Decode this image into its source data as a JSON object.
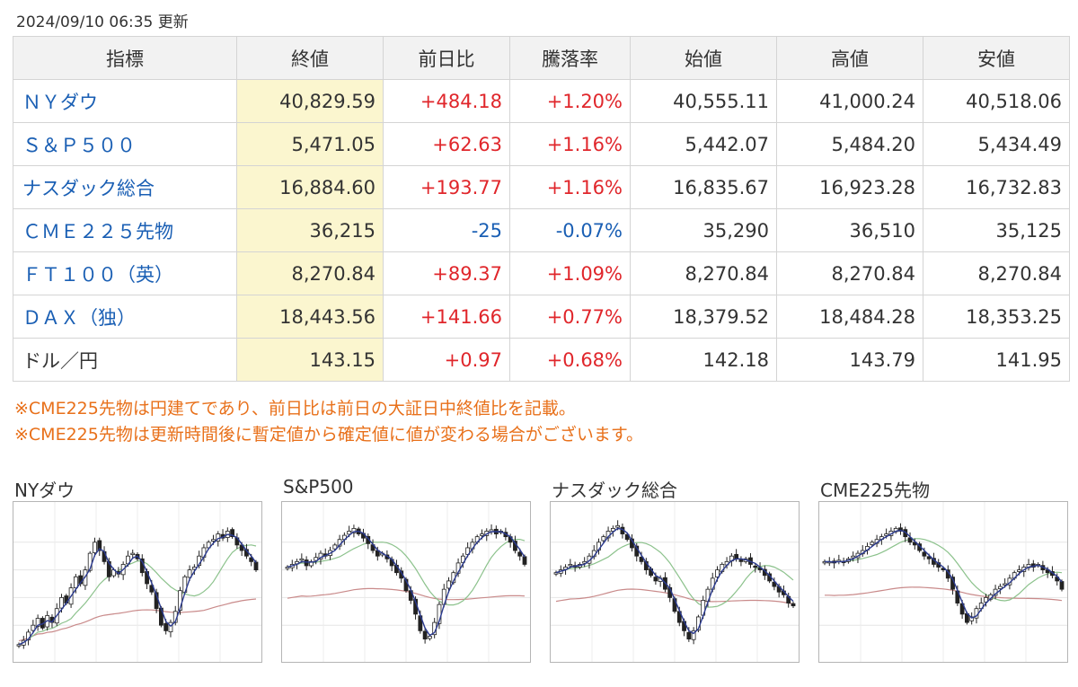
{
  "updated": "2024/09/10 06:35 更新",
  "table": {
    "headers": [
      "指標",
      "終値",
      "前日比",
      "騰落率",
      "始値",
      "高値",
      "安値"
    ],
    "rows": [
      {
        "name": "ＮＹダウ",
        "link": true,
        "close": "40,829.59",
        "change": "+484.18",
        "rate": "+1.20%",
        "open": "40,555.11",
        "high": "41,000.24",
        "low": "40,518.06",
        "dir": "up"
      },
      {
        "name": "Ｓ＆Ｐ５００",
        "link": true,
        "close": "5,471.05",
        "change": "+62.63",
        "rate": "+1.16%",
        "open": "5,442.07",
        "high": "5,484.20",
        "low": "5,434.49",
        "dir": "up"
      },
      {
        "name": "ナスダック総合",
        "link": true,
        "close": "16,884.60",
        "change": "+193.77",
        "rate": "+1.16%",
        "open": "16,835.67",
        "high": "16,923.28",
        "low": "16,732.83",
        "dir": "up"
      },
      {
        "name": "ＣＭＥ２２５先物",
        "link": true,
        "close": "36,215",
        "change": "-25",
        "rate": "-0.07%",
        "open": "35,290",
        "high": "36,510",
        "low": "35,125",
        "dir": "down"
      },
      {
        "name": "ＦＴ１００（英）",
        "link": true,
        "close": "8,270.84",
        "change": "+89.37",
        "rate": "+1.09%",
        "open": "8,270.84",
        "high": "8,270.84",
        "low": "8,270.84",
        "dir": "up"
      },
      {
        "name": "ＤＡＸ（独）",
        "link": true,
        "close": "18,443.56",
        "change": "+141.66",
        "rate": "+0.77%",
        "open": "18,379.52",
        "high": "18,484.28",
        "low": "18,353.25",
        "dir": "up"
      },
      {
        "name": "ドル／円",
        "link": false,
        "close": "143.15",
        "change": "+0.97",
        "rate": "+0.68%",
        "open": "142.18",
        "high": "143.79",
        "low": "141.95",
        "dir": "up"
      }
    ]
  },
  "notes": [
    "※CME225先物は円建てであり、前日比は前日の大証日中終値比を記載。",
    "※CME225先物は更新時間後に暫定値から確定値に値が変わる場合がございます。"
  ],
  "charts": [
    {
      "title": "NYダウ",
      "closes": [
        0.06,
        0.09,
        0.15,
        0.2,
        0.25,
        0.18,
        0.27,
        0.22,
        0.32,
        0.4,
        0.36,
        0.47,
        0.55,
        0.5,
        0.6,
        0.72,
        0.8,
        0.74,
        0.66,
        0.55,
        0.6,
        0.57,
        0.64,
        0.7,
        0.72,
        0.68,
        0.58,
        0.5,
        0.44,
        0.32,
        0.2,
        0.16,
        0.22,
        0.3,
        0.45,
        0.55,
        0.6,
        0.62,
        0.7,
        0.76,
        0.8,
        0.82,
        0.86,
        0.83,
        0.88,
        0.84,
        0.78,
        0.74,
        0.7,
        0.66,
        0.6
      ]
    },
    {
      "title": "S&P500",
      "closes": [
        0.62,
        0.64,
        0.66,
        0.68,
        0.63,
        0.66,
        0.69,
        0.72,
        0.7,
        0.74,
        0.78,
        0.82,
        0.85,
        0.88,
        0.9,
        0.86,
        0.83,
        0.79,
        0.74,
        0.7,
        0.72,
        0.68,
        0.63,
        0.58,
        0.54,
        0.45,
        0.38,
        0.28,
        0.16,
        0.1,
        0.12,
        0.22,
        0.35,
        0.46,
        0.52,
        0.58,
        0.65,
        0.7,
        0.76,
        0.8,
        0.84,
        0.86,
        0.88,
        0.89,
        0.86,
        0.88,
        0.84,
        0.8,
        0.74,
        0.7,
        0.64
      ]
    },
    {
      "title": "ナスダック総合",
      "closes": [
        0.58,
        0.6,
        0.62,
        0.64,
        0.62,
        0.64,
        0.66,
        0.7,
        0.74,
        0.8,
        0.84,
        0.88,
        0.9,
        0.92,
        0.86,
        0.82,
        0.76,
        0.7,
        0.66,
        0.6,
        0.56,
        0.52,
        0.54,
        0.46,
        0.4,
        0.3,
        0.22,
        0.16,
        0.1,
        0.16,
        0.26,
        0.38,
        0.46,
        0.54,
        0.6,
        0.64,
        0.66,
        0.7,
        0.68,
        0.66,
        0.68,
        0.64,
        0.62,
        0.6,
        0.56,
        0.52,
        0.48,
        0.44,
        0.42,
        0.36,
        0.34
      ]
    },
    {
      "title": "CME225先物",
      "closes": [
        0.66,
        0.66,
        0.65,
        0.67,
        0.66,
        0.68,
        0.7,
        0.72,
        0.74,
        0.77,
        0.8,
        0.82,
        0.84,
        0.86,
        0.88,
        0.9,
        0.88,
        0.84,
        0.8,
        0.78,
        0.74,
        0.7,
        0.68,
        0.64,
        0.62,
        0.6,
        0.54,
        0.46,
        0.36,
        0.28,
        0.22,
        0.26,
        0.32,
        0.36,
        0.4,
        0.42,
        0.46,
        0.48,
        0.5,
        0.54,
        0.58,
        0.6,
        0.62,
        0.64,
        0.62,
        0.64,
        0.6,
        0.58,
        0.56,
        0.52,
        0.46
      ]
    }
  ]
}
